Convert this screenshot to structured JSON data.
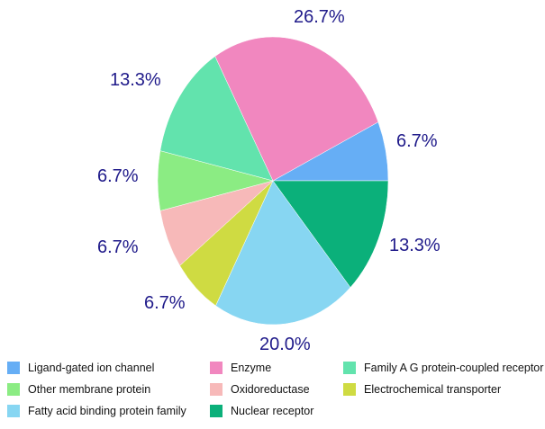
{
  "chart_data": {
    "type": "pie",
    "title": "",
    "slices": [
      {
        "name": "Ligand-gated ion channel",
        "value": 6.7,
        "label": "6.7%",
        "color": "#66aef5"
      },
      {
        "name": "Nuclear receptor",
        "value": 13.3,
        "label": "13.3%",
        "color": "#0bb07a"
      },
      {
        "name": "Fatty acid binding protein family",
        "value": 20.0,
        "label": "20.0%",
        "color": "#87d6f2"
      },
      {
        "name": "Electrochemical transporter",
        "value": 6.7,
        "label": "6.7%",
        "color": "#cfdb42"
      },
      {
        "name": "Oxidoreductase",
        "value": 6.7,
        "label": "6.7%",
        "color": "#f7b9b9"
      },
      {
        "name": "Other membrane protein",
        "value": 6.7,
        "label": "6.7%",
        "color": "#8bec83"
      },
      {
        "name": "Family A G protein-coupled receptor",
        "value": 13.3,
        "label": "13.3%",
        "color": "#62e3ad"
      },
      {
        "name": "Enzyme",
        "value": 26.7,
        "label": "26.7%",
        "color": "#f187bf"
      }
    ],
    "legend": {
      "placement": "bottom",
      "entries": [
        {
          "label": "Ligand-gated ion channel",
          "color": "#66aef5"
        },
        {
          "label": "Enzyme",
          "color": "#f187bf"
        },
        {
          "label": "Family A G protein-coupled receptor",
          "color": "#62e3ad"
        },
        {
          "label": "Other membrane protein",
          "color": "#8bec83"
        },
        {
          "label": "Oxidoreductase",
          "color": "#f7b9b9"
        },
        {
          "label": "Electrochemical transporter",
          "color": "#cfdb42"
        },
        {
          "label": "Fatty acid binding protein family",
          "color": "#87d6f2"
        },
        {
          "label": "Nuclear receptor",
          "color": "#0bb07a"
        }
      ]
    },
    "label_color": "#1f1a8a"
  }
}
